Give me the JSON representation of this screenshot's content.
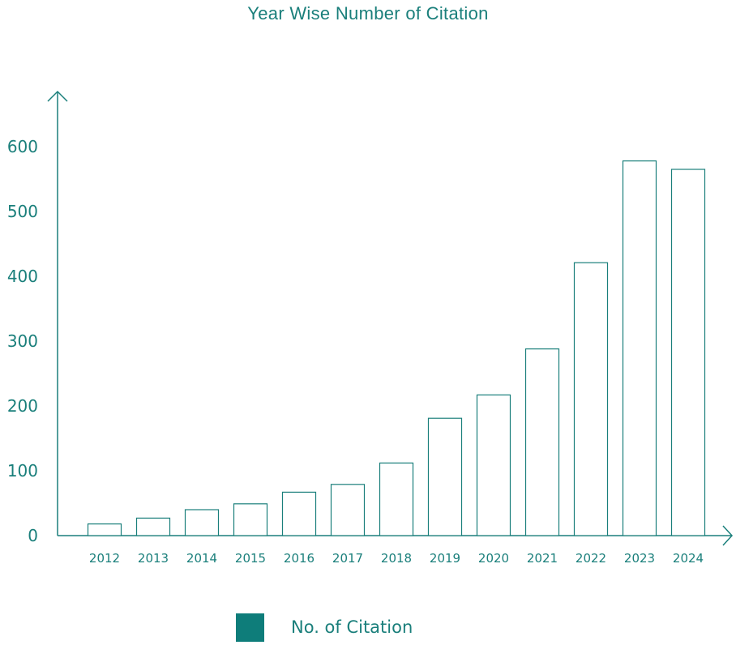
{
  "colors": {
    "accent": "#1a7f7b",
    "swatch": "#0e7d7a",
    "bar_fill": "#ffffff"
  },
  "chart_data": {
    "type": "bar",
    "title": "Year Wise Number of Citation",
    "xlabel": "",
    "ylabel": "",
    "categories": [
      "2012",
      "2013",
      "2014",
      "2015",
      "2016",
      "2017",
      "2018",
      "2019",
      "2020",
      "2021",
      "2022",
      "2023",
      "2024"
    ],
    "series": [
      {
        "name": "No. of Citation",
        "values": [
          18,
          27,
          40,
          49,
          67,
          79,
          112,
          181,
          217,
          288,
          421,
          578,
          565
        ]
      }
    ],
    "yticks": [
      "0",
      "100",
      "200",
      "300",
      "400",
      "500",
      "600"
    ],
    "ylim": [
      0,
      680
    ],
    "grid": false,
    "legend_position": "bottom"
  }
}
